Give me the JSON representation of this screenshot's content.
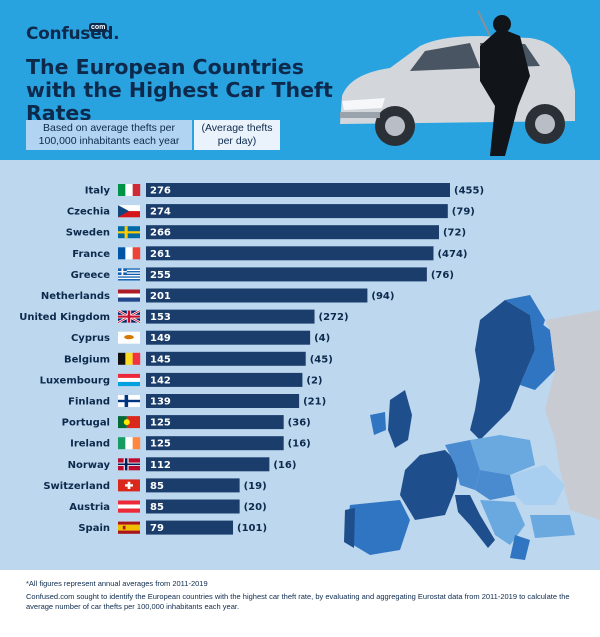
{
  "brand": {
    "name": "Confused.",
    "suffix": "com"
  },
  "title": "The European Countries with the Highest Car Theft Rates",
  "subtitle_primary": "Based on average thefts per 100,000 inhabitants each year",
  "subtitle_secondary": "(Average thefts per day)",
  "colors": {
    "header_bg": "#29a3e0",
    "body_bg": "#bcd7ee",
    "bar": "#1b3d6b",
    "text": "#0d2a4d"
  },
  "chart_data": {
    "type": "bar",
    "orientation": "horizontal",
    "categories": [
      "Italy",
      "Czechia",
      "Sweden",
      "France",
      "Greece",
      "Netherlands",
      "United Kingdom",
      "Cyprus",
      "Belgium",
      "Luxembourg",
      "Finland",
      "Portugal",
      "Ireland",
      "Norway",
      "Switzerland",
      "Austria",
      "Spain"
    ],
    "values": [
      276,
      274,
      266,
      261,
      255,
      201,
      153,
      149,
      145,
      142,
      139,
      125,
      125,
      112,
      85,
      85,
      79
    ],
    "secondary_labels": [
      "(455)",
      "(79)",
      "(72)",
      "(474)",
      "(76)",
      "(94)",
      "(272)",
      "(4)",
      "(45)",
      "(2)",
      "(21)",
      "(36)",
      "(16)",
      "(16)",
      "(19)",
      "(20)",
      "(101)"
    ],
    "flags": [
      "italy-flag",
      "czechia-flag",
      "sweden-flag",
      "france-flag",
      "greece-flag",
      "netherlands-flag",
      "united-kingdom-flag",
      "cyprus-flag",
      "belgium-flag",
      "luxembourg-flag",
      "finland-flag",
      "portugal-flag",
      "ireland-flag",
      "norway-flag",
      "switzerland-flag",
      "austria-flag",
      "spain-flag"
    ],
    "xlim": [
      0,
      276
    ],
    "grid": false,
    "title": "The European Countries with the Highest Car Theft Rates"
  },
  "footnote": "*All figures represent annual averages from 2011-2019",
  "methodology": "Confused.com sought to identify the European countries with the highest car theft rate, by evaluating and aggregating Eurostat data from 2011-2019 to calculate the average number of car thefts per 100,000 inhabitants each year."
}
